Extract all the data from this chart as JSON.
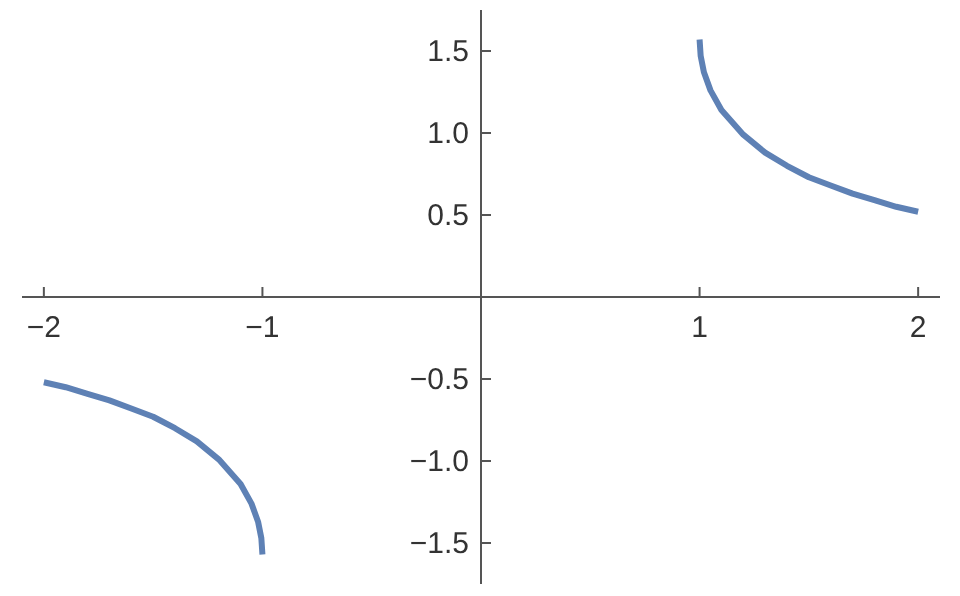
{
  "chart_data": {
    "type": "line",
    "xlim": [
      -2.1,
      2.1
    ],
    "ylim": [
      -1.75,
      1.75
    ],
    "xticks": [
      {
        "value": -2,
        "label": "−2"
      },
      {
        "value": -1,
        "label": "−1"
      },
      1,
      2
    ],
    "yticks": [
      {
        "value": -1.5,
        "label": "−1.5"
      },
      {
        "value": -1,
        "label": "−1.0"
      },
      {
        "value": -0.5,
        "label": "−0.5"
      },
      0.5,
      {
        "value": 1,
        "label": "1.0"
      },
      1.5
    ],
    "marker": "none",
    "line_style": "solid",
    "series": [
      {
        "color": "#5e81b5",
        "x": [
          -2,
          -1.9,
          -1.8,
          -1.7,
          -1.6,
          -1.5,
          -1.4,
          -1.3,
          -1.2,
          -1.1,
          -1.05,
          -1.02,
          -1.005,
          -1
        ],
        "values": [
          -0.52,
          -0.55,
          -0.59,
          -0.63,
          -0.68,
          -0.73,
          -0.8,
          -0.88,
          -0.99,
          -1.14,
          -1.26,
          -1.37,
          -1.47,
          -1.57
        ]
      },
      {
        "color": "#5e81b5",
        "x": [
          1,
          1.005,
          1.02,
          1.05,
          1.1,
          1.2,
          1.3,
          1.4,
          1.5,
          1.6,
          1.7,
          1.8,
          1.9,
          2
        ],
        "values": [
          1.57,
          1.47,
          1.37,
          1.26,
          1.14,
          0.99,
          0.88,
          0.8,
          0.73,
          0.68,
          0.63,
          0.59,
          0.55,
          0.52
        ]
      }
    ]
  }
}
